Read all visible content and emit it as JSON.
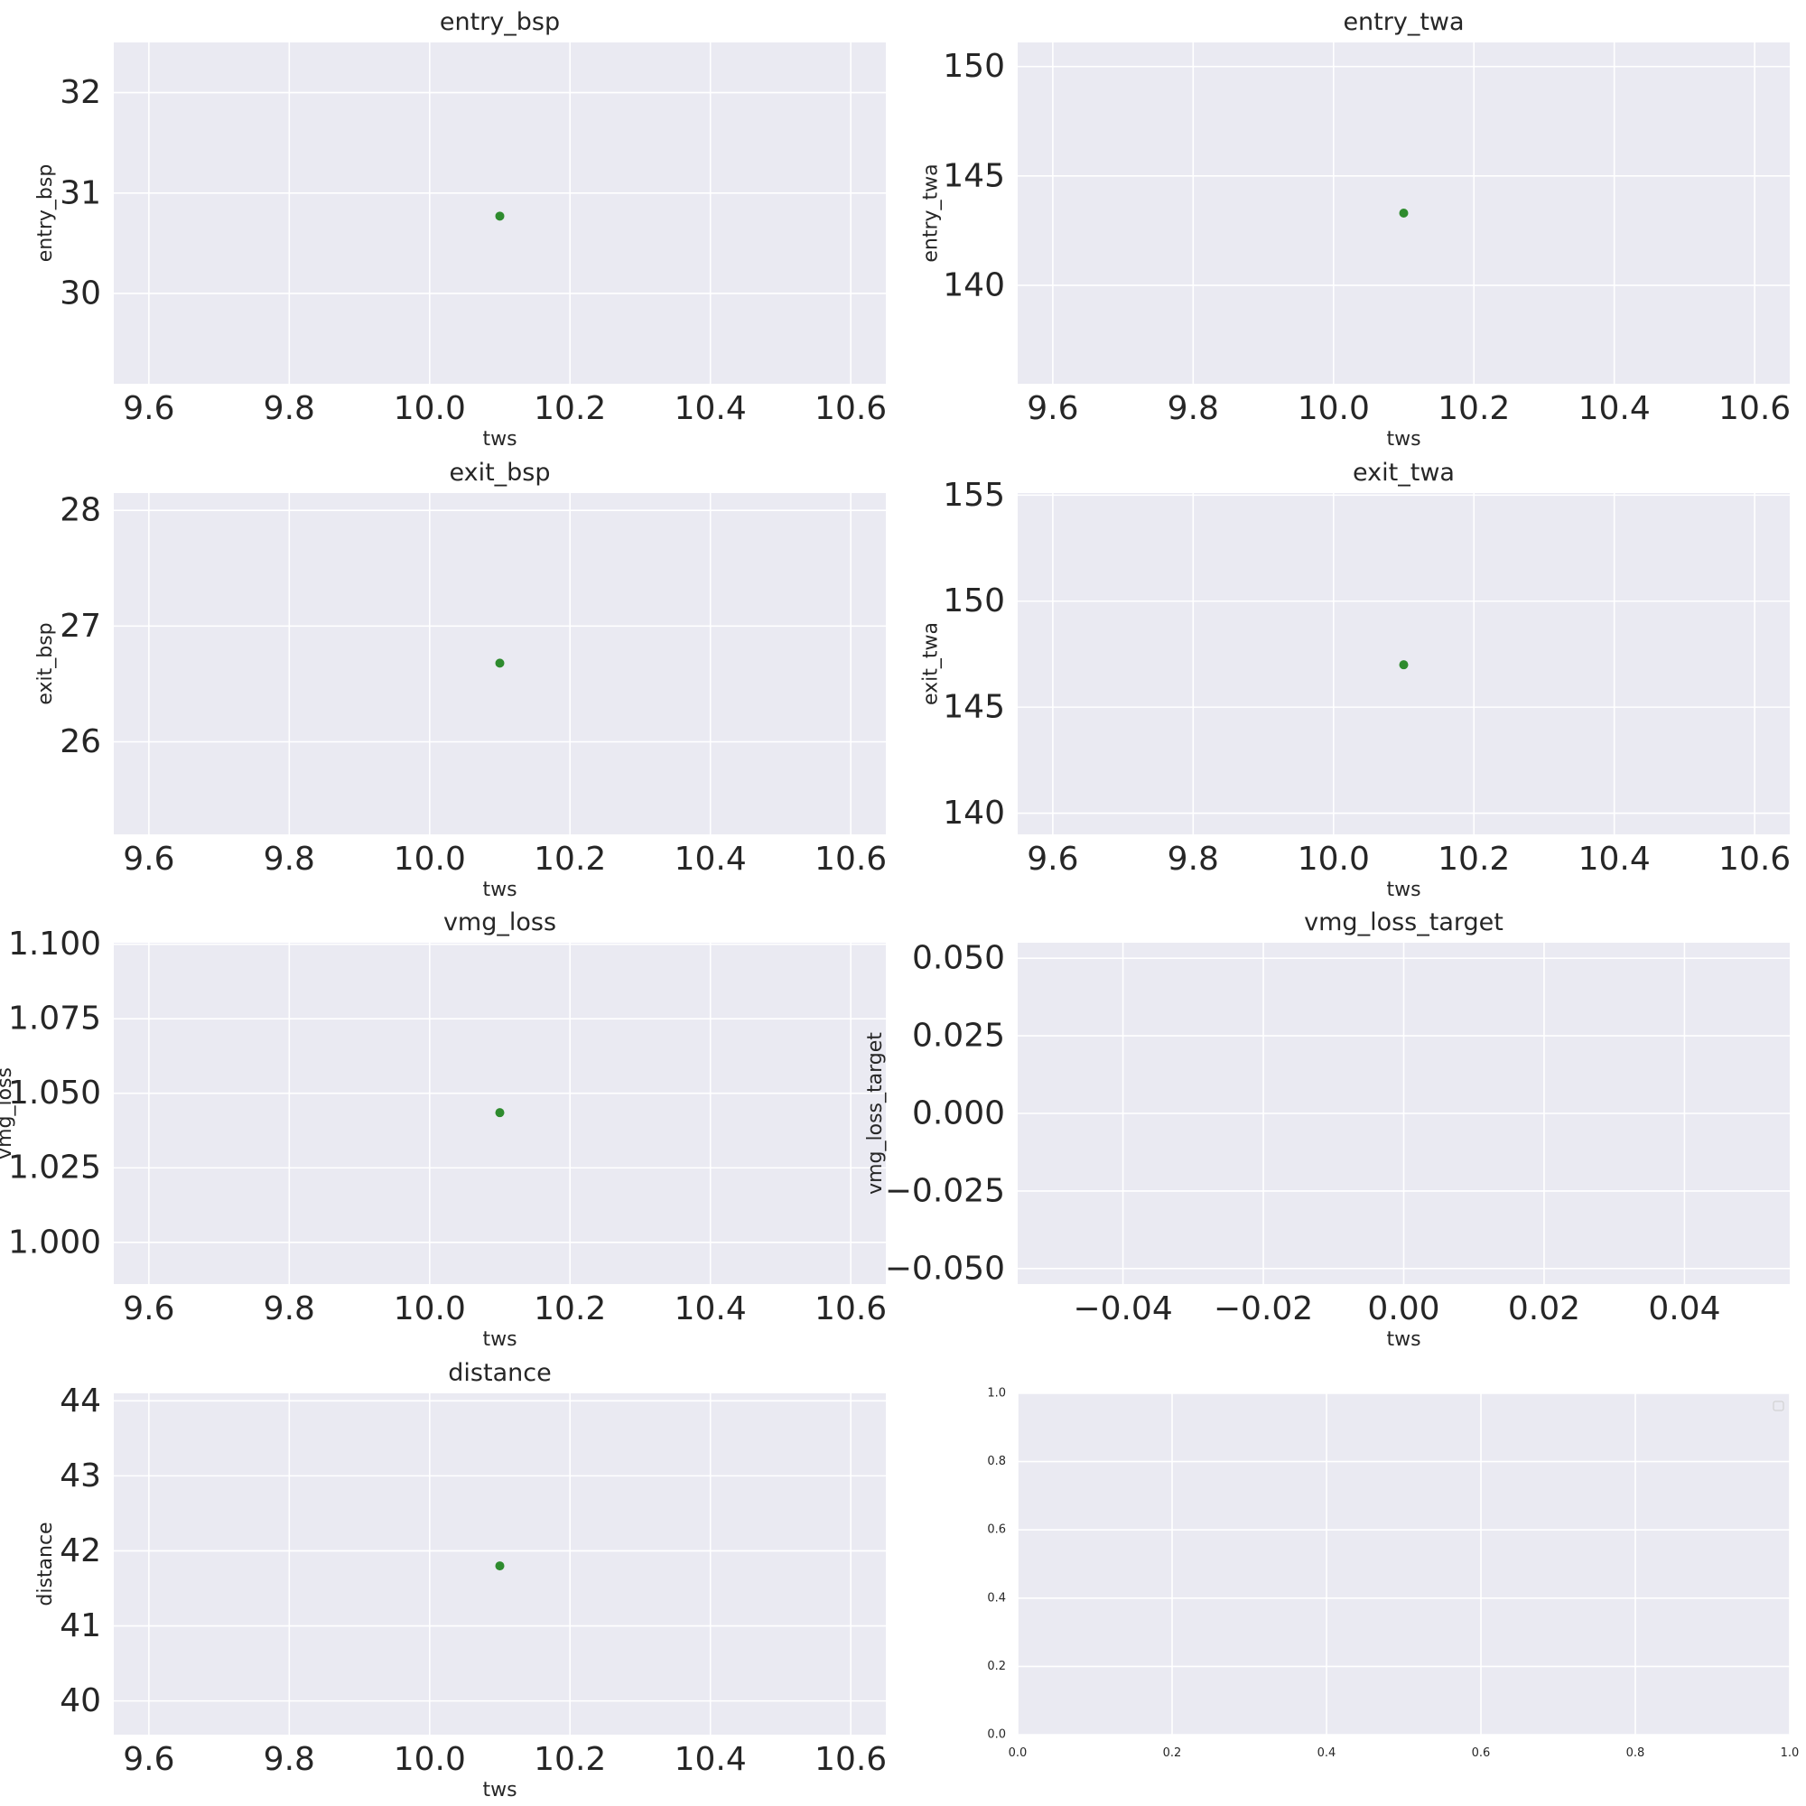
{
  "figure": {
    "background": "#ffffff",
    "axes_facecolor": "#eaeaf2",
    "grid_color": "#ffffff",
    "text_color": "#262626",
    "marker_color": "#2e8b2e"
  },
  "chart_data": [
    {
      "type": "scatter",
      "title": "entry_bsp",
      "xlabel": "tws",
      "ylabel": "entry_bsp",
      "x": [
        10.1
      ],
      "y": [
        30.77
      ],
      "xlim": [
        9.55,
        10.65
      ],
      "ylim": [
        29.1,
        32.5
      ],
      "xticks": [
        9.6,
        9.8,
        10.0,
        10.2,
        10.4,
        10.6
      ],
      "xtick_labels": [
        "9.6",
        "9.8",
        "10.0",
        "10.2",
        "10.4",
        "10.6"
      ],
      "yticks": [
        30,
        31,
        32
      ],
      "ytick_labels": [
        "30",
        "31",
        "32"
      ],
      "grid": true
    },
    {
      "type": "scatter",
      "title": "entry_twa",
      "xlabel": "tws",
      "ylabel": "entry_twa",
      "x": [
        10.1
      ],
      "y": [
        143.3
      ],
      "xlim": [
        9.55,
        10.65
      ],
      "ylim": [
        135.5,
        151.1
      ],
      "xticks": [
        9.6,
        9.8,
        10.0,
        10.2,
        10.4,
        10.6
      ],
      "xtick_labels": [
        "9.6",
        "9.8",
        "10.0",
        "10.2",
        "10.4",
        "10.6"
      ],
      "yticks": [
        140,
        145,
        150
      ],
      "ytick_labels": [
        "140",
        "145",
        "150"
      ],
      "grid": true
    },
    {
      "type": "scatter",
      "title": "exit_bsp",
      "xlabel": "tws",
      "ylabel": "exit_bsp",
      "x": [
        10.1
      ],
      "y": [
        26.68
      ],
      "xlim": [
        9.55,
        10.65
      ],
      "ylim": [
        25.2,
        28.15
      ],
      "xticks": [
        9.6,
        9.8,
        10.0,
        10.2,
        10.4,
        10.6
      ],
      "xtick_labels": [
        "9.6",
        "9.8",
        "10.0",
        "10.2",
        "10.4",
        "10.6"
      ],
      "yticks": [
        26,
        27,
        28
      ],
      "ytick_labels": [
        "26",
        "27",
        "28"
      ],
      "grid": true
    },
    {
      "type": "scatter",
      "title": "exit_twa",
      "xlabel": "tws",
      "ylabel": "exit_twa",
      "x": [
        10.1
      ],
      "y": [
        147.0
      ],
      "xlim": [
        9.55,
        10.65
      ],
      "ylim": [
        139.0,
        155.1
      ],
      "xticks": [
        9.6,
        9.8,
        10.0,
        10.2,
        10.4,
        10.6
      ],
      "xtick_labels": [
        "9.6",
        "9.8",
        "10.0",
        "10.2",
        "10.4",
        "10.6"
      ],
      "yticks": [
        140,
        145,
        150,
        155
      ],
      "ytick_labels": [
        "140",
        "145",
        "150",
        "155"
      ],
      "grid": true
    },
    {
      "type": "scatter",
      "title": "vmg_loss",
      "xlabel": "tws",
      "ylabel": "vmg_loss",
      "x": [
        10.1
      ],
      "y": [
        1.0435
      ],
      "xlim": [
        9.55,
        10.65
      ],
      "ylim": [
        0.986,
        1.1005
      ],
      "xticks": [
        9.6,
        9.8,
        10.0,
        10.2,
        10.4,
        10.6
      ],
      "xtick_labels": [
        "9.6",
        "9.8",
        "10.0",
        "10.2",
        "10.4",
        "10.6"
      ],
      "yticks": [
        1.0,
        1.025,
        1.05,
        1.075,
        1.1
      ],
      "ytick_labels": [
        "1.000",
        "1.025",
        "1.050",
        "1.075",
        "1.100"
      ],
      "grid": true
    },
    {
      "type": "scatter",
      "title": "vmg_loss_target",
      "xlabel": "tws",
      "ylabel": "vmg_loss_target",
      "x": [],
      "y": [],
      "xlim": [
        -0.055,
        0.055
      ],
      "ylim": [
        -0.055,
        0.055
      ],
      "xticks": [
        -0.04,
        -0.02,
        0.0,
        0.02,
        0.04
      ],
      "xtick_labels": [
        "−0.04",
        "−0.02",
        "0.00",
        "0.02",
        "0.04"
      ],
      "yticks": [
        -0.05,
        -0.025,
        0.0,
        0.025,
        0.05
      ],
      "ytick_labels": [
        "−0.050",
        "−0.025",
        "0.000",
        "0.025",
        "0.050"
      ],
      "grid": true
    },
    {
      "type": "scatter",
      "title": "distance",
      "xlabel": "tws",
      "ylabel": "distance",
      "x": [
        10.1
      ],
      "y": [
        41.8
      ],
      "xlim": [
        9.55,
        10.65
      ],
      "ylim": [
        39.55,
        44.1
      ],
      "xticks": [
        9.6,
        9.8,
        10.0,
        10.2,
        10.4,
        10.6
      ],
      "xtick_labels": [
        "9.6",
        "9.8",
        "10.0",
        "10.2",
        "10.4",
        "10.6"
      ],
      "yticks": [
        40,
        41,
        42,
        43,
        44
      ],
      "ytick_labels": [
        "40",
        "41",
        "42",
        "43",
        "44"
      ],
      "grid": true
    },
    {
      "type": "scatter",
      "title": "",
      "xlabel": "",
      "ylabel": "",
      "x": [],
      "y": [],
      "xlim": [
        0,
        1
      ],
      "ylim": [
        0,
        1
      ],
      "xticks": [
        0,
        0.2,
        0.4,
        0.6,
        0.8,
        1.0
      ],
      "xtick_labels": [
        "0.0",
        "0.2",
        "0.4",
        "0.6",
        "0.8",
        "1.0"
      ],
      "yticks": [
        0,
        0.2,
        0.4,
        0.6,
        0.8,
        1.0
      ],
      "ytick_labels": [
        "0.0",
        "0.2",
        "0.4",
        "0.6",
        "0.8",
        "1.0"
      ],
      "grid": true,
      "small_ticks": true,
      "legend": "top-right",
      "legend_entries": []
    }
  ]
}
